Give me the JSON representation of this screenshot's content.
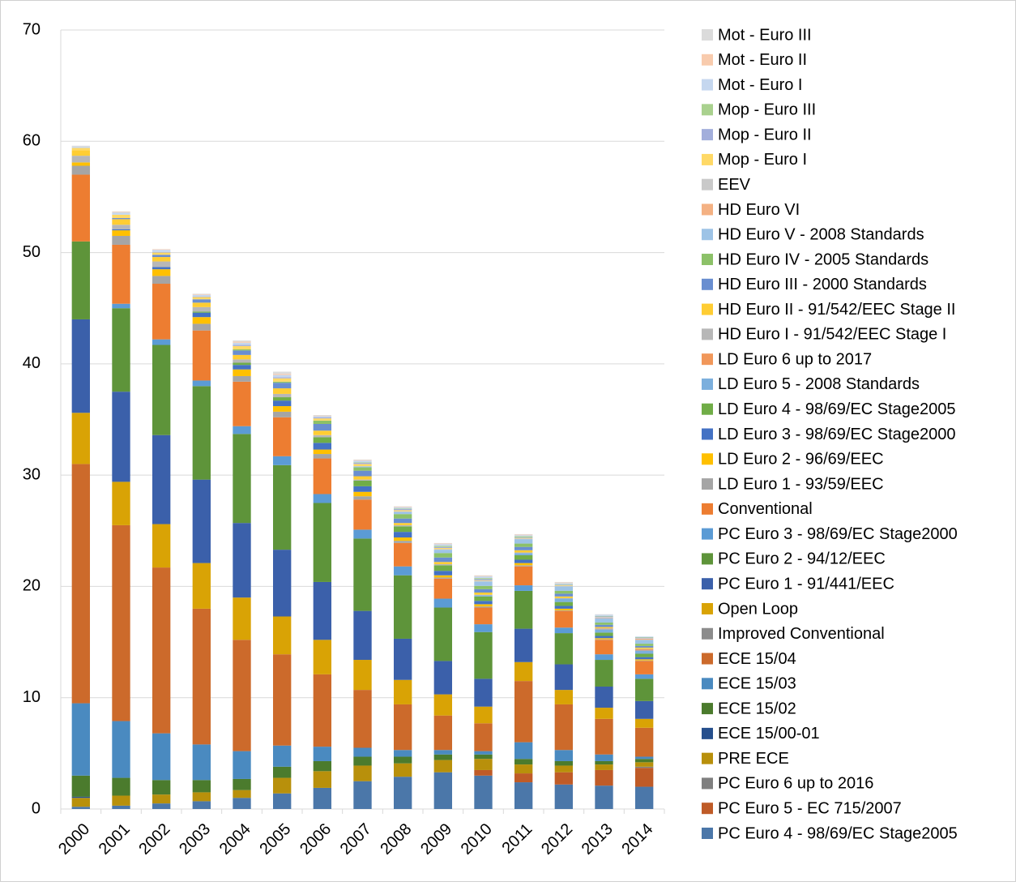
{
  "chart_data": {
    "type": "stacked-bar",
    "categories": [
      "2000",
      "2001",
      "2002",
      "2003",
      "2004",
      "2005",
      "2006",
      "2007",
      "2008",
      "2009",
      "2010",
      "2011",
      "2012",
      "2013",
      "2014"
    ],
    "ylim": [
      0,
      70
    ],
    "yticks": [
      0,
      10,
      20,
      30,
      40,
      50,
      60,
      70
    ],
    "grid": true,
    "legend": "right",
    "series": [
      {
        "name": "PC Euro 4 - 98/69/EC Stage2005",
        "color": "#4b77a9",
        "values": [
          0.2,
          0.3,
          0.5,
          0.7,
          1.0,
          1.4,
          1.9,
          2.5,
          2.9,
          3.3,
          3.0,
          2.4,
          2.2,
          2.1,
          2.0
        ]
      },
      {
        "name": "PC Euro 5 - EC 715/2007",
        "color": "#bf5b27",
        "values": [
          0,
          0,
          0,
          0,
          0,
          0,
          0,
          0,
          0,
          0,
          0.5,
          0.8,
          1.1,
          1.4,
          1.7
        ]
      },
      {
        "name": "PC Euro 6 up to 2016",
        "color": "#7f7f7f",
        "values": [
          0,
          0,
          0,
          0,
          0,
          0,
          0,
          0,
          0,
          0,
          0,
          0,
          0,
          0,
          0.1
        ]
      },
      {
        "name": "PRE ECE",
        "color": "#b8900b",
        "values": [
          0.8,
          0.9,
          0.8,
          0.8,
          0.7,
          1.4,
          1.5,
          1.4,
          1.2,
          1.1,
          1.0,
          0.8,
          0.6,
          0.5,
          0.4
        ]
      },
      {
        "name": "ECE 15/00-01",
        "color": "#264f8d",
        "values": [
          0.1,
          0,
          0,
          0,
          0,
          0,
          0,
          0,
          0,
          0,
          0,
          0,
          0,
          0,
          0
        ]
      },
      {
        "name": "ECE 15/02",
        "color": "#4b7b2d",
        "values": [
          1.9,
          1.6,
          1.3,
          1.1,
          1.0,
          1.0,
          0.9,
          0.8,
          0.6,
          0.5,
          0.4,
          0.5,
          0.4,
          0.3,
          0.3
        ]
      },
      {
        "name": "ECE 15/03",
        "color": "#4a8ac0",
        "values": [
          6.5,
          5.1,
          4.2,
          3.2,
          2.5,
          1.9,
          1.3,
          0.8,
          0.6,
          0.4,
          0.3,
          1.5,
          1.0,
          0.6,
          0.2
        ]
      },
      {
        "name": "ECE 15/04",
        "color": "#cc6a2b",
        "values": [
          21.5,
          17.6,
          14.9,
          12.2,
          10.0,
          8.2,
          6.5,
          5.2,
          4.1,
          3.1,
          2.5,
          5.5,
          4.1,
          3.2,
          2.6
        ]
      },
      {
        "name": "Improved Conventional",
        "color": "#8c8c8c",
        "values": [
          0,
          0,
          0,
          0,
          0,
          0,
          0,
          0,
          0,
          0,
          0,
          0,
          0,
          0,
          0
        ]
      },
      {
        "name": "Open Loop",
        "color": "#d9a305",
        "values": [
          4.6,
          3.9,
          3.9,
          4.1,
          3.8,
          3.4,
          3.1,
          2.7,
          2.2,
          1.9,
          1.5,
          1.7,
          1.3,
          1.0,
          0.8
        ]
      },
      {
        "name": "PC Euro 1 - 91/441/EEC",
        "color": "#3b60aa",
        "values": [
          8.4,
          8.1,
          8.0,
          7.5,
          6.7,
          6.0,
          5.2,
          4.4,
          3.7,
          3.0,
          2.5,
          3.0,
          2.3,
          1.9,
          1.6
        ]
      },
      {
        "name": "PC Euro 2 - 94/12/EEC",
        "color": "#5e943a",
        "values": [
          7.0,
          7.5,
          8.1,
          8.4,
          8.0,
          7.6,
          7.1,
          6.5,
          5.7,
          4.8,
          4.2,
          3.4,
          2.8,
          2.4,
          2.0
        ]
      },
      {
        "name": "PC Euro 3 - 98/69/EC Stage2000",
        "color": "#5b9bd5",
        "values": [
          0,
          0.4,
          0.5,
          0.5,
          0.7,
          0.8,
          0.8,
          0.8,
          0.8,
          0.8,
          0.7,
          0.5,
          0.5,
          0.5,
          0.4
        ]
      },
      {
        "name": "Conventional",
        "color": "#ed7d31",
        "values": [
          6.0,
          5.3,
          5.0,
          4.5,
          4.0,
          3.5,
          3.2,
          2.7,
          2.1,
          1.8,
          1.5,
          1.7,
          1.5,
          1.3,
          1.2
        ]
      },
      {
        "name": "LD Euro 1 - 93/59/EEC",
        "color": "#a5a5a5",
        "values": [
          0.8,
          0.8,
          0.7,
          0.6,
          0.5,
          0.5,
          0.4,
          0.3,
          0.2,
          0.1,
          0.1,
          0.1,
          0.05,
          0.05,
          0.05
        ]
      },
      {
        "name": "LD Euro 2 - 96/69/EEC",
        "color": "#ffc000",
        "values": [
          0.3,
          0.5,
          0.6,
          0.6,
          0.6,
          0.5,
          0.4,
          0.4,
          0.3,
          0.2,
          0.2,
          0.2,
          0.15,
          0.1,
          0.1
        ]
      },
      {
        "name": "LD Euro 3 - 98/69/EC Stage2000",
        "color": "#4472c4",
        "values": [
          0,
          0.1,
          0.2,
          0.4,
          0.4,
          0.5,
          0.6,
          0.5,
          0.5,
          0.4,
          0.3,
          0.3,
          0.25,
          0.2,
          0.2
        ]
      },
      {
        "name": "LD Euro 4 - 98/69/EC Stage2005",
        "color": "#70ad47",
        "values": [
          0,
          0,
          0,
          0.1,
          0.2,
          0.3,
          0.5,
          0.5,
          0.5,
          0.5,
          0.4,
          0.4,
          0.35,
          0.3,
          0.3
        ]
      },
      {
        "name": "LD Euro 5 - 2008 Standards",
        "color": "#7cafdd",
        "values": [
          0,
          0,
          0,
          0,
          0,
          0,
          0,
          0,
          0,
          0,
          0.1,
          0.2,
          0.3,
          0.3,
          0.3
        ]
      },
      {
        "name": "LD Euro 6 up to 2017",
        "color": "#f1975a",
        "values": [
          0,
          0,
          0,
          0,
          0,
          0,
          0,
          0,
          0,
          0,
          0,
          0,
          0,
          0.05,
          0.1
        ]
      },
      {
        "name": "HD Euro I - 91/542/EEC Stage I",
        "color": "#b7b7b7",
        "values": [
          0.6,
          0.4,
          0.5,
          0.4,
          0.3,
          0.3,
          0.2,
          0.1,
          0.1,
          0.1,
          0.05,
          0.05,
          0.05,
          0.05,
          0.05
        ]
      },
      {
        "name": "HD Euro II - 91/542/EEC Stage II",
        "color": "#ffcd33",
        "values": [
          0.5,
          0.5,
          0.4,
          0.4,
          0.4,
          0.5,
          0.4,
          0.3,
          0.2,
          0.2,
          0.2,
          0.2,
          0.15,
          0.1,
          0.1
        ]
      },
      {
        "name": "HD Euro III - 2000 Standards",
        "color": "#698ed0",
        "values": [
          0,
          0.1,
          0.2,
          0.3,
          0.4,
          0.5,
          0.6,
          0.5,
          0.4,
          0.4,
          0.3,
          0.3,
          0.25,
          0.2,
          0.15
        ]
      },
      {
        "name": "HD Euro IV - 2005 Standards",
        "color": "#8cc168",
        "values": [
          0,
          0,
          0,
          0,
          0.1,
          0.1,
          0.3,
          0.3,
          0.4,
          0.4,
          0.3,
          0.3,
          0.25,
          0.2,
          0.2
        ]
      },
      {
        "name": "HD Euro V - 2008 Standards",
        "color": "#9dc3e6",
        "values": [
          0,
          0,
          0,
          0,
          0,
          0,
          0,
          0.1,
          0.2,
          0.3,
          0.4,
          0.4,
          0.4,
          0.4,
          0.35
        ]
      },
      {
        "name": "HD Euro VI",
        "color": "#f4b183",
        "values": [
          0,
          0,
          0,
          0,
          0,
          0,
          0,
          0,
          0,
          0,
          0,
          0,
          0,
          0.05,
          0.1
        ]
      },
      {
        "name": "EEV",
        "color": "#c9c9c9",
        "values": [
          0,
          0,
          0,
          0,
          0,
          0,
          0,
          0,
          0.05,
          0.05,
          0.05,
          0.05,
          0.05,
          0.05,
          0.05
        ]
      },
      {
        "name": "Mop - Euro I",
        "color": "#ffd966",
        "values": [
          0.2,
          0.3,
          0.2,
          0.2,
          0.3,
          0.3,
          0.2,
          0.2,
          0.1,
          0.1,
          0.05,
          0.05,
          0.05,
          0,
          0
        ]
      },
      {
        "name": "Mop - Euro II",
        "color": "#a2aedb",
        "values": [
          0,
          0,
          0.05,
          0.05,
          0.1,
          0.1,
          0.1,
          0.1,
          0.1,
          0.1,
          0.1,
          0.05,
          0.05,
          0.05,
          0.05
        ]
      },
      {
        "name": "Mop - Euro III",
        "color": "#a9d18e",
        "values": [
          0,
          0,
          0,
          0,
          0,
          0,
          0,
          0.05,
          0.05,
          0.1,
          0.1,
          0.1,
          0.05,
          0.05,
          0.05
        ]
      },
      {
        "name": "Mot - Euro I",
        "color": "#c5d7ef",
        "values": [
          0.1,
          0.2,
          0.2,
          0.15,
          0.2,
          0.2,
          0.1,
          0.15,
          0.1,
          0.15,
          0.15,
          0.1,
          0.1,
          0.1,
          0.05
        ]
      },
      {
        "name": "Mot - Euro II",
        "color": "#f8cbad",
        "values": [
          0,
          0.05,
          0.05,
          0.05,
          0.1,
          0.1,
          0.05,
          0.05,
          0.05,
          0.05,
          0.05,
          0.05,
          0.05,
          0,
          0
        ]
      },
      {
        "name": "Mot - Euro III",
        "color": "#dbdbdb",
        "values": [
          0.1,
          0.05,
          0,
          0.05,
          0.1,
          0.2,
          0.05,
          0.05,
          0.05,
          0.05,
          0.05,
          0.05,
          0.05,
          0.05,
          0
        ]
      }
    ]
  }
}
